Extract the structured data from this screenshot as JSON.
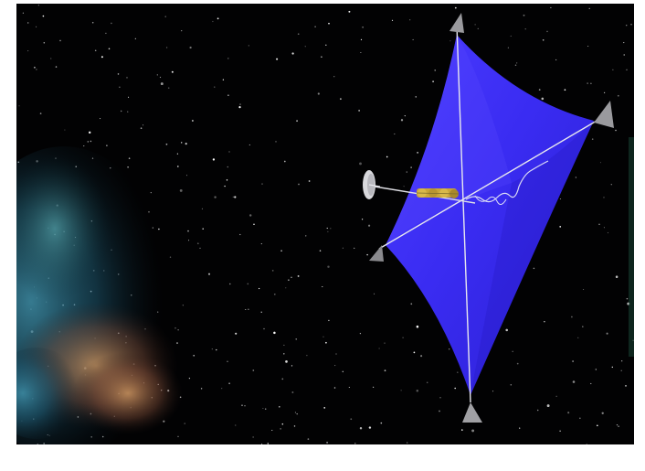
{
  "image": {
    "subject": "solar-sail-spacecraft",
    "colors": {
      "frame": "#ffffff",
      "space": "#020203",
      "sail": "#3a2cf2",
      "sail_shadow": "#2a1fd6",
      "sail_highlight": "#5a4cff",
      "boom": "#e8e8ee",
      "tip_mass": "#9a9a9e",
      "payload": "#c9a53a",
      "dish": "#d8d8dc",
      "nebula_blue": "#2f6f86",
      "nebula_orange": "#b07a4a"
    }
  }
}
